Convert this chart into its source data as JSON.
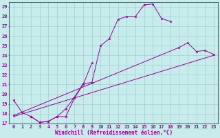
{
  "xlabel": "Windchill (Refroidissement éolien,°C)",
  "background_color": "#c8ecec",
  "grid_color": "#9ecece",
  "line_color": "#990099",
  "xlim": [
    -0.5,
    23.5
  ],
  "ylim": [
    17,
    29.5
  ],
  "xticks": [
    0,
    1,
    2,
    3,
    4,
    5,
    6,
    7,
    8,
    9,
    10,
    11,
    12,
    13,
    14,
    15,
    16,
    17,
    18,
    19,
    20,
    21,
    22,
    23
  ],
  "yticks": [
    17,
    18,
    19,
    20,
    21,
    22,
    23,
    24,
    25,
    26,
    27,
    28,
    29
  ],
  "series": [
    {
      "x": [
        0,
        1,
        2,
        3,
        4,
        5,
        6,
        7,
        8,
        9
      ],
      "y": [
        19.4,
        18.1,
        17.7,
        17.1,
        17.2,
        17.7,
        17.7,
        19.6,
        21.0,
        23.2
      ]
    },
    {
      "x": [
        2,
        3,
        4,
        5,
        6,
        7,
        8,
        9,
        10,
        11,
        12,
        13,
        14,
        15,
        16,
        17,
        18
      ],
      "y": [
        17.7,
        17.1,
        17.2,
        17.7,
        18.5,
        19.7,
        21.1,
        21.2,
        25.0,
        25.7,
        27.7,
        28.0,
        28.0,
        29.2,
        29.3,
        27.8,
        27.5
      ]
    },
    {
      "x": [
        0,
        23
      ],
      "y": [
        17.7,
        24.0
      ],
      "no_marker": true
    },
    {
      "x": [
        0,
        19,
        20,
        21,
        22,
        23
      ],
      "y": [
        17.8,
        24.8,
        25.3,
        24.4,
        24.5,
        24.1
      ],
      "no_marker": false
    }
  ]
}
